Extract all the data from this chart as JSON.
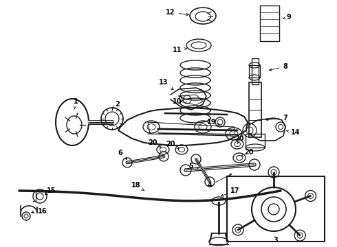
{
  "background_color": "#ffffff",
  "line_color": "#1a1a1a",
  "fig_width": 4.9,
  "fig_height": 3.6,
  "dpi": 100,
  "label_fontsize": 7.0,
  "arrow_lw": 0.6,
  "parts_lw": 1.0
}
